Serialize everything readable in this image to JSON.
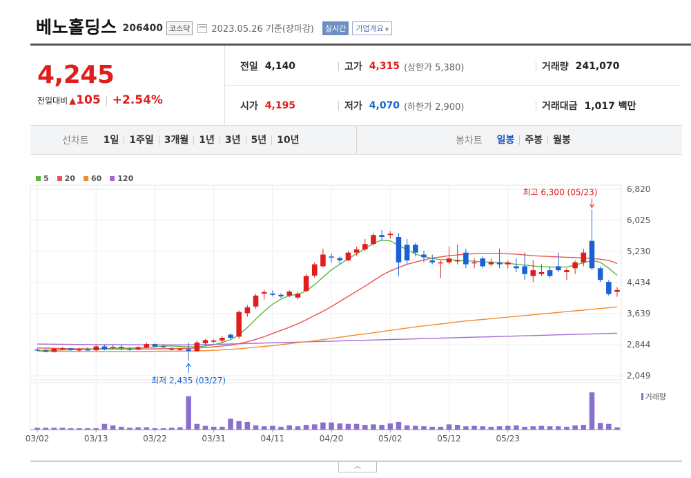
{
  "header": {
    "company_name": "베노홀딩스",
    "ticker_code": "206400",
    "market": "코스닥",
    "calendar_icon": "calendar-icon",
    "date_text": "2023.05.26 기준(장마감)",
    "realtime_label": "실시간",
    "overview_label": "기업개요"
  },
  "price": {
    "current": "4,245",
    "change_label": "전일대비",
    "change_amount": "105",
    "change_rate": "+2.54%",
    "direction": "up"
  },
  "stats": {
    "prev_close_label": "전일",
    "prev_close": "4,140",
    "high_label": "고가",
    "high": "4,315",
    "upper_limit": "(상한가 5,380)",
    "volume_label": "거래량",
    "volume": "241,070",
    "open_label": "시가",
    "open": "4,195",
    "low_label": "저가",
    "low": "4,070",
    "lower_limit": "(하한가 2,900)",
    "amount_label": "거래대금",
    "amount": "1,017 백만"
  },
  "periods": {
    "line_label": "선차트",
    "line_items": [
      "1일",
      "1주일",
      "3개월",
      "1년",
      "3년",
      "5년",
      "10년"
    ],
    "candle_label": "봉차트",
    "candle_items": [
      "일봉",
      "주봉",
      "월봉"
    ],
    "active_candle": "일봉"
  },
  "colors": {
    "up": "#e01d1d",
    "down": "#1a62d4",
    "ma5": "#5cb445",
    "ma20": "#e85353",
    "ma60": "#f08c2e",
    "ma120": "#a56ad6",
    "volume": "#8a6fcf"
  },
  "chart_data": {
    "type": "candlestick",
    "legend": [
      {
        "label": "5",
        "color": "#5cb445"
      },
      {
        "label": "20",
        "color": "#e85353"
      },
      {
        "label": "60",
        "color": "#f08c2e"
      },
      {
        "label": "120",
        "color": "#a56ad6"
      }
    ],
    "y_ticks": [
      "6,820",
      "6,025",
      "5,230",
      "4,434",
      "3,639",
      "2,844",
      "2,049"
    ],
    "ylim": [
      2049,
      6820
    ],
    "x_ticks": [
      "03/02",
      "03/13",
      "03/22",
      "03/31",
      "04/11",
      "04/20",
      "05/02",
      "05/12",
      "05/23"
    ],
    "x_tick_index": [
      0,
      7,
      14,
      21,
      28,
      35,
      42,
      49,
      56
    ],
    "annotations": {
      "high_label": "최고 6,300 (05/23)",
      "low_label": "최저 2,435 (03/27)"
    },
    "volume_label": "거래량",
    "candles": [
      [
        2720,
        2760,
        2690,
        2700
      ],
      [
        2700,
        2740,
        2650,
        2660
      ],
      [
        2660,
        2760,
        2640,
        2740
      ],
      [
        2730,
        2780,
        2700,
        2750
      ],
      [
        2750,
        2760,
        2690,
        2710
      ],
      [
        2700,
        2760,
        2670,
        2720
      ],
      [
        2720,
        2780,
        2690,
        2700
      ],
      [
        2700,
        2840,
        2680,
        2800
      ],
      [
        2800,
        2840,
        2700,
        2720
      ],
      [
        2780,
        2830,
        2740,
        2790
      ],
      [
        2790,
        2850,
        2700,
        2760
      ],
      [
        2740,
        2780,
        2690,
        2720
      ],
      [
        2720,
        2800,
        2700,
        2780
      ],
      [
        2770,
        2900,
        2750,
        2860
      ],
      [
        2860,
        2880,
        2780,
        2800
      ],
      [
        2800,
        2850,
        2770,
        2790
      ],
      [
        2740,
        2780,
        2700,
        2720
      ],
      [
        2710,
        2760,
        2690,
        2730
      ],
      [
        2730,
        2900,
        2435,
        2680
      ],
      [
        2680,
        2950,
        2650,
        2900
      ],
      [
        2880,
        2990,
        2820,
        2960
      ],
      [
        2920,
        2980,
        2880,
        2950
      ],
      [
        2950,
        3060,
        2880,
        3020
      ],
      [
        3100,
        3140,
        2980,
        3020
      ],
      [
        3050,
        3720,
        3000,
        3680
      ],
      [
        3650,
        3860,
        3560,
        3800
      ],
      [
        3820,
        4150,
        3760,
        4100
      ],
      [
        4150,
        4250,
        4000,
        4190
      ],
      [
        4150,
        4230,
        4080,
        4120
      ],
      [
        4120,
        4160,
        4040,
        4080
      ],
      [
        4100,
        4240,
        4060,
        4200
      ],
      [
        4050,
        4200,
        4000,
        4150
      ],
      [
        4220,
        4650,
        4190,
        4600
      ],
      [
        4610,
        4950,
        4560,
        4900
      ],
      [
        4850,
        5300,
        4820,
        5150
      ],
      [
        5100,
        5180,
        4950,
        5080
      ],
      [
        5060,
        5100,
        4900,
        5000
      ],
      [
        5000,
        5250,
        4980,
        5200
      ],
      [
        5200,
        5350,
        5120,
        5280
      ],
      [
        5280,
        5550,
        5240,
        5420
      ],
      [
        5420,
        5700,
        5380,
        5650
      ],
      [
        5650,
        5780,
        5500,
        5600
      ],
      [
        5650,
        5750,
        5560,
        5680
      ],
      [
        5600,
        5700,
        4600,
        4950
      ],
      [
        5400,
        5550,
        4900,
        5000
      ],
      [
        5400,
        5450,
        5100,
        5200
      ],
      [
        5150,
        5250,
        4950,
        5080
      ],
      [
        5000,
        5150,
        4900,
        4950
      ],
      [
        4950,
        5000,
        4550,
        4950
      ],
      [
        4950,
        5350,
        4900,
        5050
      ],
      [
        5000,
        5400,
        4900,
        5000
      ],
      [
        5200,
        5300,
        4800,
        4900
      ],
      [
        4950,
        5050,
        4800,
        4950
      ],
      [
        5050,
        5100,
        4800,
        4850
      ],
      [
        4900,
        5050,
        4850,
        4950
      ],
      [
        4950,
        5300,
        4800,
        4900
      ],
      [
        4900,
        5000,
        4800,
        4950
      ],
      [
        4850,
        5050,
        4700,
        4800
      ],
      [
        4850,
        5200,
        4500,
        4650
      ],
      [
        4600,
        5000,
        4450,
        4750
      ],
      [
        4650,
        4900,
        4600,
        4700
      ],
      [
        4750,
        4850,
        4550,
        4600
      ],
      [
        4850,
        5200,
        4700,
        4750
      ],
      [
        4700,
        4800,
        4500,
        4750
      ],
      [
        4800,
        5000,
        4650,
        4950
      ],
      [
        4950,
        5300,
        4850,
        5200
      ],
      [
        5500,
        6300,
        4750,
        4800
      ],
      [
        4800,
        4850,
        4450,
        4500
      ],
      [
        4450,
        4500,
        4100,
        4140
      ],
      [
        4195,
        4315,
        4070,
        4245
      ]
    ],
    "volume": [
      40,
      40,
      40,
      40,
      0,
      0,
      0,
      0,
      120,
      90,
      60,
      40,
      50,
      50,
      0,
      0,
      40,
      50,
      700,
      120,
      80,
      60,
      60,
      230,
      180,
      160,
      90,
      70,
      80,
      60,
      90,
      70,
      100,
      110,
      150,
      150,
      130,
      120,
      120,
      100,
      110,
      100,
      130,
      160,
      90,
      80,
      70,
      60,
      60,
      110,
      100,
      70,
      80,
      70,
      60,
      70,
      80,
      90,
      60,
      70,
      80,
      70,
      70,
      60,
      90,
      100,
      780,
      140,
      120,
      50
    ],
    "ma5": [
      2700,
      2700,
      2705,
      2710,
      2712,
      2720,
      2730,
      2740,
      2745,
      2750,
      2755,
      2755,
      2758,
      2770,
      2790,
      2810,
      2810,
      2800,
      2790,
      2790,
      2810,
      2840,
      2900,
      2970,
      3100,
      3280,
      3500,
      3700,
      3880,
      4010,
      4100,
      4130,
      4220,
      4380,
      4570,
      4760,
      4900,
      5040,
      5170,
      5300,
      5440,
      5520,
      5500,
      5380,
      5280,
      5160,
      5100,
      5050,
      5020,
      5020,
      5000,
      4990,
      4980,
      4960,
      4960,
      4940,
      4930,
      4900,
      4880,
      4860,
      4840,
      4830,
      4830,
      4830,
      4880,
      4940,
      5000,
      4950,
      4800,
      4620
    ],
    "ma20": [
      2760,
      2755,
      2750,
      2745,
      2740,
      2740,
      2738,
      2735,
      2735,
      2733,
      2732,
      2732,
      2733,
      2735,
      2738,
      2740,
      2745,
      2748,
      2750,
      2760,
      2770,
      2790,
      2810,
      2830,
      2870,
      2920,
      2980,
      3050,
      3130,
      3210,
      3290,
      3380,
      3480,
      3590,
      3700,
      3820,
      3950,
      4080,
      4210,
      4340,
      4480,
      4620,
      4730,
      4820,
      4900,
      4960,
      5010,
      5060,
      5090,
      5120,
      5140,
      5160,
      5170,
      5180,
      5180,
      5180,
      5170,
      5160,
      5140,
      5120,
      5110,
      5100,
      5090,
      5080,
      5070,
      5060,
      5050,
      5030,
      5000,
      4920
    ],
    "ma60": [
      2680,
      2678,
      2676,
      2674,
      2672,
      2670,
      2670,
      2670,
      2670,
      2670,
      2670,
      2670,
      2670,
      2672,
      2674,
      2676,
      2678,
      2680,
      2682,
      2686,
      2690,
      2700,
      2710,
      2725,
      2740,
      2760,
      2780,
      2800,
      2820,
      2845,
      2870,
      2895,
      2920,
      2945,
      2975,
      3005,
      3035,
      3065,
      3095,
      3120,
      3150,
      3180,
      3210,
      3240,
      3270,
      3300,
      3325,
      3350,
      3375,
      3400,
      3425,
      3450,
      3470,
      3490,
      3510,
      3530,
      3550,
      3570,
      3590,
      3610,
      3630,
      3650,
      3670,
      3690,
      3710,
      3730,
      3750,
      3770,
      3790,
      3810
    ],
    "ma120": [
      2860,
      2858,
      2856,
      2854,
      2852,
      2850,
      2848,
      2846,
      2845,
      2844,
      2843,
      2842,
      2841,
      2840,
      2840,
      2840,
      2840,
      2840,
      2840,
      2842,
      2845,
      2850,
      2856,
      2862,
      2868,
      2874,
      2880,
      2886,
      2892,
      2898,
      2904,
      2910,
      2916,
      2922,
      2928,
      2934,
      2940,
      2946,
      2952,
      2958,
      2964,
      2970,
      2976,
      2982,
      2988,
      2994,
      3000,
      3006,
      3012,
      3018,
      3024,
      3030,
      3036,
      3042,
      3048,
      3054,
      3060,
      3066,
      3072,
      3078,
      3084,
      3090,
      3096,
      3102,
      3108,
      3114,
      3120,
      3126,
      3132,
      3138
    ]
  }
}
